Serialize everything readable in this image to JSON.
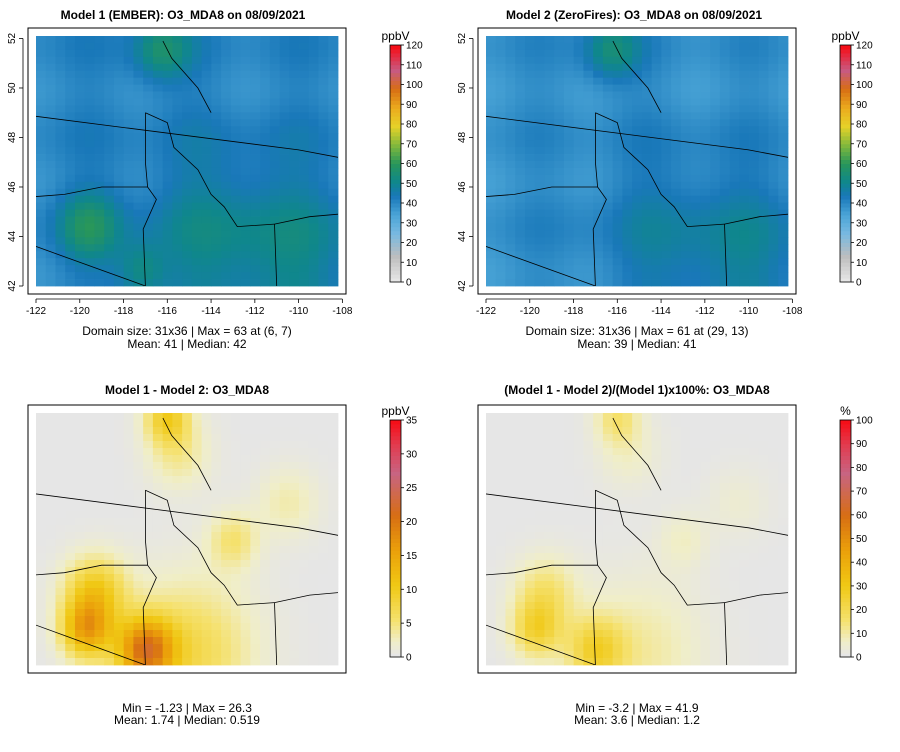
{
  "chart_data": [
    {
      "type": "heatmap",
      "title": "Model 1 (EMBER): O3_MDA8 on 08/09/2021",
      "x_ticks": [
        "-122",
        "-120",
        "-118",
        "-116",
        "-114",
        "-112",
        "-110",
        "-108"
      ],
      "y_ticks": [
        "42",
        "44",
        "46",
        "48",
        "50",
        "52"
      ],
      "colorbar_unit": "ppbV",
      "colorbar_ticks": [
        "0",
        "10",
        "20",
        "30",
        "40",
        "50",
        "60",
        "70",
        "80",
        "90",
        "100",
        "110",
        "120"
      ],
      "colorbar_range": [
        0,
        120
      ],
      "stat_line1": "Domain size: 31x36 | Max = 63 at (6, 7)",
      "stat_line2": "Mean: 41 |  Median: 42",
      "field": {
        "base": 40,
        "ocean": 32,
        "peak": 63,
        "hot": [
          [
            -119.6,
            44.4,
            16,
            1.0
          ],
          [
            -117.2,
            42.6,
            12,
            0.8
          ],
          [
            -116.3,
            51.5,
            16,
            0.9
          ],
          [
            -114,
            44,
            8,
            2.5
          ],
          [
            -110,
            43,
            8,
            2.5
          ]
        ]
      }
    },
    {
      "type": "heatmap",
      "title": "Model 2 (ZeroFires): O3_MDA8 on 08/09/2021",
      "x_ticks": [
        "-122",
        "-120",
        "-118",
        "-116",
        "-114",
        "-112",
        "-110",
        "-108"
      ],
      "y_ticks": [
        "42",
        "44",
        "46",
        "48",
        "50",
        "52"
      ],
      "colorbar_unit": "ppbV",
      "colorbar_ticks": [
        "0",
        "10",
        "20",
        "30",
        "40",
        "50",
        "60",
        "70",
        "80",
        "90",
        "100",
        "110",
        "120"
      ],
      "colorbar_range": [
        0,
        120
      ],
      "stat_line1": "Domain size: 31x36 | Max = 61 at (29, 13)",
      "stat_line2": "Mean: 39 |  Median: 41",
      "field": {
        "base": 38,
        "ocean": 32,
        "peak": 61,
        "hot": [
          [
            -116.3,
            51.5,
            16,
            0.9
          ],
          [
            -110,
            43,
            8,
            2.5
          ],
          [
            -114,
            44,
            6,
            2.5
          ]
        ]
      }
    },
    {
      "type": "heatmap",
      "title": "Model 1 - Model 2: O3_MDA8",
      "colorbar_unit": "ppbV",
      "colorbar_ticks": [
        "0",
        "5",
        "10",
        "15",
        "20",
        "25",
        "30",
        "35"
      ],
      "colorbar_range": [
        0,
        35
      ],
      "stat_line1": "Min = -1.23 | Max = 26.3",
      "stat_line2": "Mean: 1.74 |  Median: 0.519",
      "field": {
        "base": 0,
        "peak": 26.3,
        "hot": [
          [
            -119.7,
            43.4,
            14,
            0.8
          ],
          [
            -119.3,
            44.9,
            10,
            1.0
          ],
          [
            -117.0,
            42.6,
            18,
            0.9
          ],
          [
            -115.0,
            42.5,
            7,
            2.0
          ],
          [
            -116.0,
            51.9,
            9,
            0.7
          ],
          [
            -115.5,
            50.5,
            4,
            1.0
          ],
          [
            -113.0,
            47.0,
            5,
            0.8
          ],
          [
            -110.5,
            48.5,
            3,
            1.0
          ]
        ]
      }
    },
    {
      "type": "heatmap",
      "title": "(Model 1 - Model 2)/(Model 1)x100%: O3_MDA8",
      "colorbar_unit": "%",
      "colorbar_ticks": [
        "0",
        "10",
        "20",
        "30",
        "40",
        "50",
        "60",
        "70",
        "80",
        "90",
        "100"
      ],
      "colorbar_range": [
        0,
        100
      ],
      "stat_line1": "Min = -3.2 | Max = 41.9",
      "stat_line2": "Mean: 3.6 |  Median: 1.2",
      "field": {
        "base": 0,
        "peak": 41.9,
        "hot": [
          [
            -119.7,
            43.4,
            22,
            0.8
          ],
          [
            -119.3,
            44.9,
            15,
            1.0
          ],
          [
            -117.0,
            42.6,
            22,
            0.9
          ],
          [
            -115.0,
            42.5,
            10,
            2.0
          ],
          [
            -116.0,
            51.9,
            14,
            0.7
          ],
          [
            -115.5,
            50.5,
            6,
            1.0
          ],
          [
            -113.0,
            47.0,
            6,
            0.8
          ],
          [
            -110.5,
            48.5,
            4,
            1.0
          ]
        ]
      }
    }
  ]
}
